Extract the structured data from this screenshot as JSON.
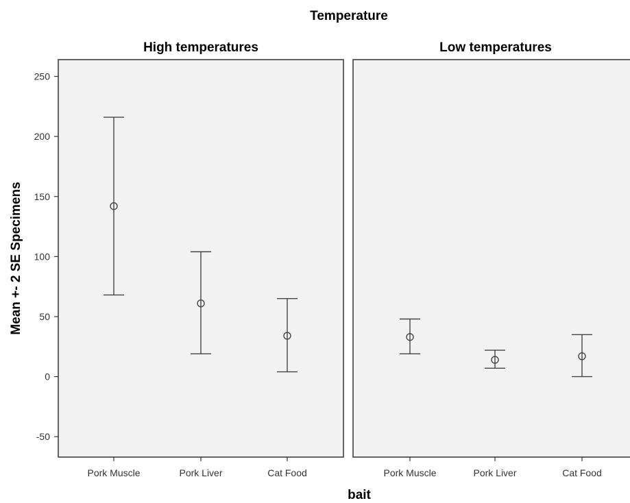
{
  "chart_data": {
    "type": "scatter",
    "title": "Temperature",
    "xlabel": "bait",
    "ylabel": "Mean +- 2 SE Specimens",
    "ylim": [
      -67,
      264
    ],
    "yticks": [
      250,
      200,
      150,
      100,
      50,
      0,
      -50
    ],
    "categories": [
      "Pork Muscle",
      "Pork Liver",
      "Cat Food"
    ],
    "grid": false,
    "panels": [
      {
        "name": "High temperatures",
        "mean": [
          142,
          61,
          34
        ],
        "lower": [
          68,
          19,
          4
        ],
        "upper": [
          216,
          104,
          65
        ]
      },
      {
        "name": "Low temperatures",
        "mean": [
          33,
          14,
          17
        ],
        "lower": [
          19,
          7,
          0
        ],
        "upper": [
          48,
          22,
          35
        ]
      }
    ],
    "colors": {
      "panel_bg": "#f2f2f2",
      "frame": "#333333",
      "marker": "#444444"
    }
  }
}
